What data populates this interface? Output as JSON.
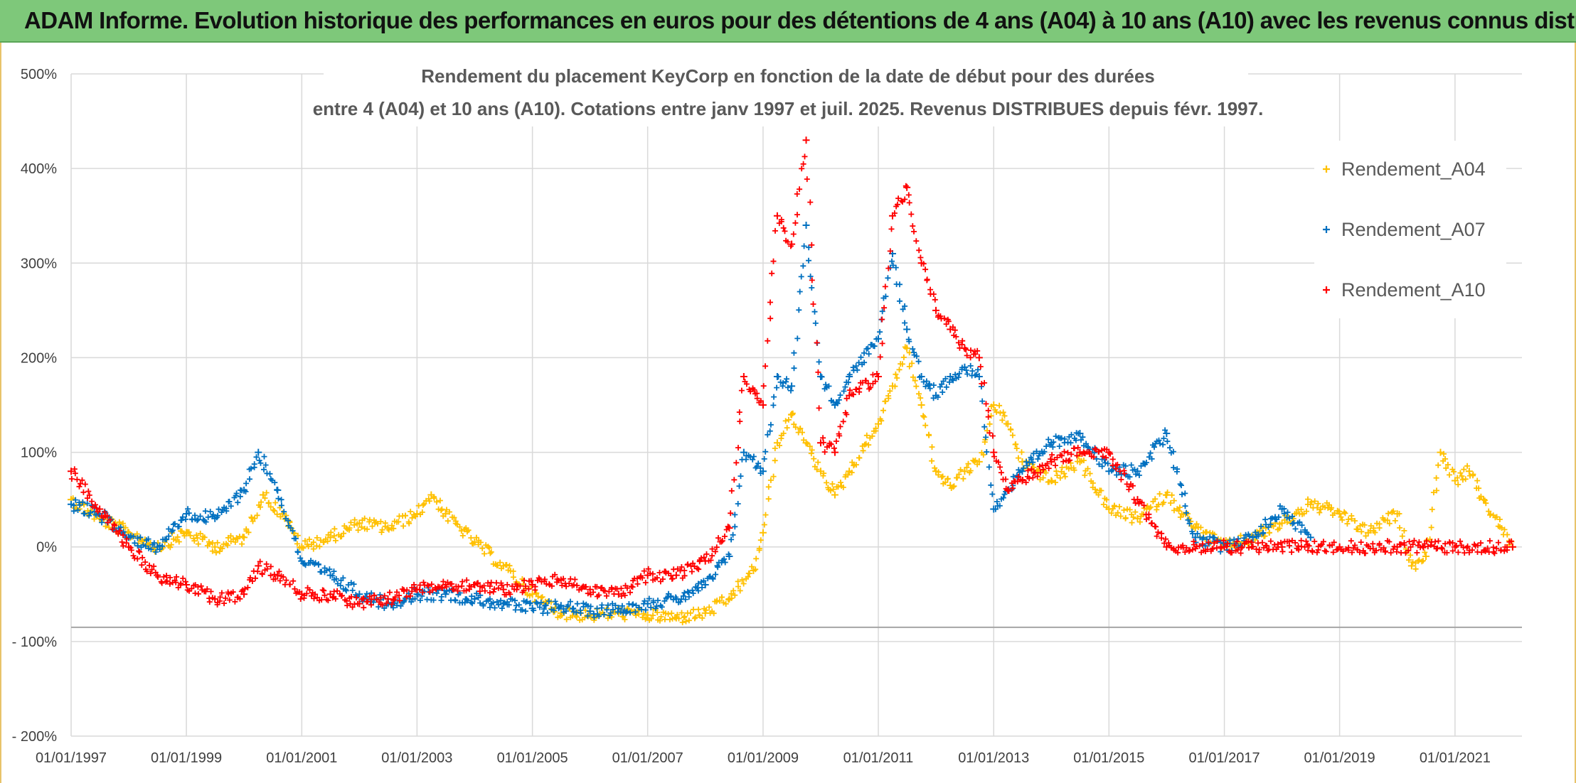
{
  "header": {
    "banner_title": "ADAM Informe. Evolution historique des performances en euros pour des détentions de 4 ans (A04) à 10 ans (A10) avec les revenus connus distribués"
  },
  "colors": {
    "banner_bg": "#7ec87a",
    "A04": "#FFC000",
    "A07": "#0070C0",
    "A10": "#FF0000",
    "grid": "#d9d9d9"
  },
  "chart_data": {
    "type": "scatter",
    "title_line1": "Rendement du placement KeyCorp en fonction de la date de début pour des durées",
    "title_line2": "entre 4 (A04) et 10 ans (A10). Cotations entre janv 1997 et juil. 2025. Revenus DISTRIBUES depuis févr. 1997.",
    "ylim": [
      -200,
      500
    ],
    "xlim": [
      "1997-01-01",
      "2022-03-01"
    ],
    "y_ticks": [
      500,
      400,
      300,
      200,
      100,
      0,
      -100,
      -200
    ],
    "y_tick_labels": [
      "500%",
      "400%",
      "300%",
      "200%",
      "100%",
      "0%",
      "- 100%",
      "- 200%"
    ],
    "x_ticks": [
      "1997-01-01",
      "1999-01-01",
      "2001-01-01",
      "2003-01-01",
      "2005-01-01",
      "2007-01-01",
      "2009-01-01",
      "2011-01-01",
      "2013-01-01",
      "2015-01-01",
      "2017-01-01",
      "2019-01-01",
      "2021-01-01"
    ],
    "x_tick_labels": [
      "01/01/1997",
      "01/01/1999",
      "01/01/2001",
      "01/01/2003",
      "01/01/2005",
      "01/01/2007",
      "01/01/2009",
      "01/01/2011",
      "01/01/2013",
      "01/01/2015",
      "01/01/2017",
      "01/01/2019",
      "01/01/2021"
    ],
    "grid": true,
    "legend_position": "top-right",
    "series": [
      {
        "name": "Rendement_A04",
        "color": "#FFC000",
        "x": [
          "1997-01-01",
          "1997-07-01",
          "1998-01-01",
          "1998-07-01",
          "1999-01-01",
          "1999-07-01",
          "2000-01-01",
          "2000-05-01",
          "2000-09-01",
          "2001-01-01",
          "2001-07-01",
          "2002-01-01",
          "2002-07-01",
          "2003-01-01",
          "2003-04-01",
          "2003-07-01",
          "2004-01-01",
          "2004-07-01",
          "2005-01-01",
          "2005-07-01",
          "2006-01-01",
          "2006-07-01",
          "2007-01-01",
          "2007-07-01",
          "2008-01-01",
          "2008-06-01",
          "2008-11-01",
          "2009-01-01",
          "2009-04-01",
          "2009-07-01",
          "2009-10-01",
          "2010-01-01",
          "2010-04-01",
          "2010-07-01",
          "2011-01-01",
          "2011-04-01",
          "2011-07-01",
          "2011-10-01",
          "2012-01-01",
          "2012-04-01",
          "2012-07-01",
          "2012-10-01",
          "2013-01-01",
          "2013-04-01",
          "2013-07-01",
          "2014-01-01",
          "2014-07-01",
          "2015-01-01",
          "2015-07-01",
          "2016-01-01",
          "2016-07-01",
          "2017-01-01",
          "2017-07-01",
          "2018-01-01",
          "2018-07-01",
          "2019-01-01",
          "2019-07-01",
          "2020-01-01",
          "2020-04-01",
          "2020-07-01",
          "2020-10-01",
          "2021-01-01",
          "2021-04-01",
          "2021-07-01",
          "2022-01-01"
        ],
        "y": [
          50,
          30,
          15,
          0,
          15,
          0,
          10,
          55,
          35,
          0,
          10,
          25,
          20,
          35,
          55,
          35,
          5,
          -20,
          -50,
          -70,
          -72,
          -70,
          -72,
          -75,
          -70,
          -55,
          -25,
          15,
          110,
          140,
          110,
          80,
          55,
          80,
          130,
          170,
          210,
          150,
          80,
          65,
          80,
          90,
          150,
          130,
          90,
          70,
          90,
          40,
          30,
          55,
          20,
          0,
          10,
          25,
          45,
          35,
          15,
          35,
          -20,
          -10,
          100,
          70,
          80,
          50,
          0
        ]
      },
      {
        "name": "Rendement_A07",
        "color": "#0070C0",
        "x": [
          "1997-01-01",
          "1997-07-01",
          "1998-01-01",
          "1998-07-01",
          "1999-01-01",
          "1999-07-01",
          "2000-01-01",
          "2000-04-01",
          "2000-08-01",
          "2001-01-01",
          "2001-07-01",
          "2002-01-01",
          "2002-07-01",
          "2003-01-01",
          "2003-07-01",
          "2004-01-01",
          "2004-07-01",
          "2005-01-01",
          "2005-07-01",
          "2006-01-01",
          "2006-07-01",
          "2007-01-01",
          "2007-07-01",
          "2008-01-01",
          "2008-06-01",
          "2008-09-01",
          "2009-01-01",
          "2009-04-01",
          "2009-07-01",
          "2009-10-01",
          "2010-01-01",
          "2010-04-01",
          "2010-07-01",
          "2011-01-01",
          "2011-04-01",
          "2011-07-01",
          "2011-10-01",
          "2012-01-01",
          "2012-04-01",
          "2012-07-01",
          "2012-10-01",
          "2013-01-01",
          "2013-04-01",
          "2013-07-01",
          "2014-01-01",
          "2014-07-01",
          "2015-01-01",
          "2015-07-01",
          "2016-01-01",
          "2016-07-01",
          "2017-01-01",
          "2017-07-01",
          "2018-01-01",
          "2018-07-01"
        ],
        "y": [
          45,
          35,
          10,
          0,
          35,
          30,
          60,
          100,
          60,
          -15,
          -30,
          -50,
          -60,
          -50,
          -50,
          -55,
          -60,
          -65,
          -62,
          -68,
          -65,
          -60,
          -55,
          -40,
          -10,
          100,
          80,
          180,
          170,
          340,
          180,
          150,
          180,
          220,
          310,
          230,
          180,
          160,
          180,
          190,
          180,
          40,
          60,
          80,
          110,
          120,
          80,
          80,
          120,
          10,
          0,
          10,
          40,
          10
        ]
      },
      {
        "name": "Rendement_A10",
        "color": "#FF0000",
        "x": [
          "1997-01-01",
          "1997-07-01",
          "1998-01-01",
          "1998-07-01",
          "1999-01-01",
          "1999-07-01",
          "2000-01-01",
          "2000-04-01",
          "2000-08-01",
          "2001-01-01",
          "2001-07-01",
          "2002-01-01",
          "2002-07-01",
          "2003-01-01",
          "2003-07-01",
          "2004-01-01",
          "2004-07-01",
          "2005-01-01",
          "2005-07-01",
          "2006-01-01",
          "2006-07-01",
          "2007-01-01",
          "2007-07-01",
          "2008-01-01",
          "2008-06-01",
          "2008-09-01",
          "2009-01-01",
          "2009-04-01",
          "2009-07-01",
          "2009-10-01",
          "2010-01-01",
          "2010-04-01",
          "2010-07-01",
          "2011-01-01",
          "2011-04-01",
          "2011-07-01",
          "2011-10-01",
          "2012-01-01",
          "2012-04-01",
          "2012-07-01",
          "2012-10-01",
          "2013-01-01",
          "2013-04-01",
          "2013-07-01",
          "2014-01-01",
          "2014-07-01",
          "2015-01-01",
          "2015-07-01",
          "2016-01-01",
          "2017-01-01",
          "2018-01-01",
          "2019-01-01",
          "2020-01-01",
          "2021-01-01",
          "2022-01-01"
        ],
        "y": [
          80,
          40,
          0,
          -30,
          -40,
          -55,
          -50,
          -20,
          -30,
          -50,
          -50,
          -60,
          -55,
          -45,
          -40,
          -40,
          -45,
          -40,
          -35,
          -45,
          -50,
          -30,
          -30,
          -15,
          20,
          180,
          150,
          350,
          320,
          430,
          110,
          100,
          160,
          180,
          350,
          380,
          300,
          250,
          230,
          210,
          200,
          100,
          60,
          70,
          90,
          100,
          100,
          50,
          0,
          0,
          0,
          0,
          0,
          0,
          0
        ]
      }
    ]
  }
}
